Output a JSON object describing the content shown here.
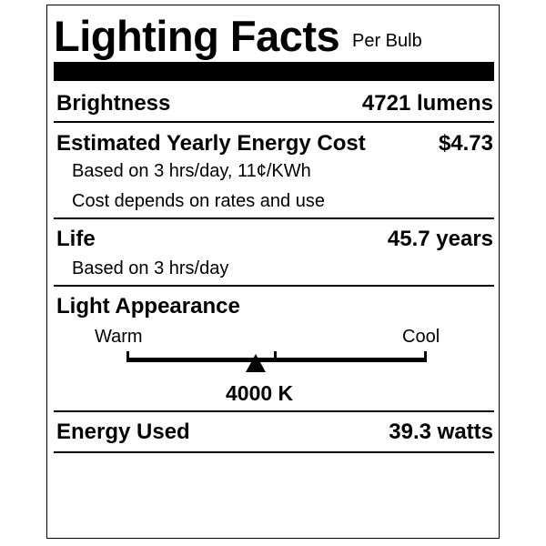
{
  "header": {
    "title": "Lighting Facts",
    "subtitle": "Per Bulb"
  },
  "brightness": {
    "label": "Brightness",
    "value": "4721 lumens"
  },
  "energy_cost": {
    "label": "Estimated Yearly Energy Cost",
    "value": "$4.73",
    "note1": "Based on 3 hrs/day, 11¢/KWh",
    "note2": "Cost depends on rates and use"
  },
  "life": {
    "label": "Life",
    "value": "45.7 years",
    "note": "Based on 3 hrs/day"
  },
  "light_appearance": {
    "label": "Light Appearance",
    "warm_label": "Warm",
    "cool_label": "Cool",
    "value": "4000 K",
    "marker_fraction": 0.43
  },
  "energy_used": {
    "label": "Energy Used",
    "value": "39.3 watts"
  }
}
